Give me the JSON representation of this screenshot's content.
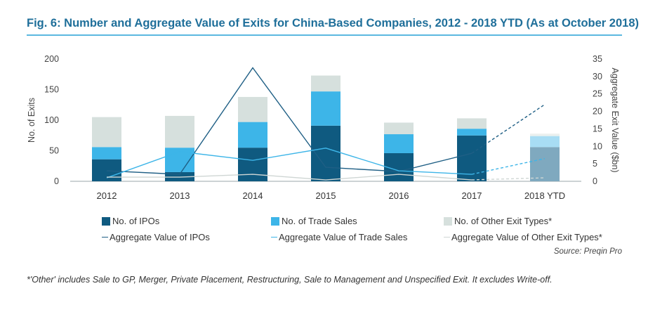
{
  "title": "Fig. 6: Number and Aggregate Value of Exits for China-Based Companies, 2012 - 2018 YTD (As at October 2018)",
  "source": "Source: Preqin Pro",
  "footnote": "*'Other' includes Sale to GP, Merger, Private Placement, Restructuring, Sale to Management and Unspecified Exit. It excludes Write-off.",
  "colors": {
    "ipo": "#0f5a80",
    "trade": "#3db5e8",
    "other": "#d6e0dd",
    "ipo_ytd": "#7fa9bf",
    "trade_ytd": "#a8ddf4",
    "other_ytd": "#ebf0ee",
    "ipo_line": "#1f5f85",
    "trade_line": "#3db5e8",
    "other_line": "#cfd6d4"
  },
  "chart_data": {
    "type": "bar",
    "stacked": true,
    "categories": [
      "2012",
      "2013",
      "2014",
      "2015",
      "2016",
      "2017",
      "2018 YTD"
    ],
    "ylabel": "No. of Exits",
    "ylim": [
      0,
      200
    ],
    "yticks": [
      "0",
      "50",
      "100",
      "150",
      "200"
    ],
    "y2label": "Aggregate Exit Value ($bn)",
    "y2lim": [
      0,
      35
    ],
    "y2ticks": [
      "0",
      "5",
      "10",
      "15",
      "20",
      "25",
      "30",
      "35"
    ],
    "series": [
      {
        "name": "No. of IPOs",
        "type": "bar",
        "axis": "left",
        "values": [
          36,
          15,
          55,
          91,
          46,
          75,
          56
        ]
      },
      {
        "name": "No. of Trade Sales",
        "type": "bar",
        "axis": "left",
        "values": [
          20,
          40,
          42,
          56,
          31,
          11,
          18
        ]
      },
      {
        "name": "No. of Other Exit Types*",
        "type": "bar",
        "axis": "left",
        "values": [
          49,
          52,
          41,
          26,
          19,
          17,
          4
        ]
      },
      {
        "name": "Aggregate Value of IPOs",
        "type": "line",
        "axis": "right",
        "values": [
          3,
          2,
          32.5,
          4,
          2.8,
          8,
          22
        ],
        "dashed_last_segment": true
      },
      {
        "name": "Aggregate Value of Trade Sales",
        "type": "line",
        "axis": "right",
        "values": [
          1,
          8.5,
          6,
          9.5,
          3,
          2,
          6.5
        ],
        "dashed_last_segment": true
      },
      {
        "name": "Aggregate Value of Other Exit Types*",
        "type": "line",
        "axis": "right",
        "values": [
          1.2,
          1.2,
          2,
          0.4,
          2,
          0.4,
          1
        ],
        "dashed_last_segment": true
      }
    ],
    "legend_position": "bottom",
    "grid": false
  }
}
